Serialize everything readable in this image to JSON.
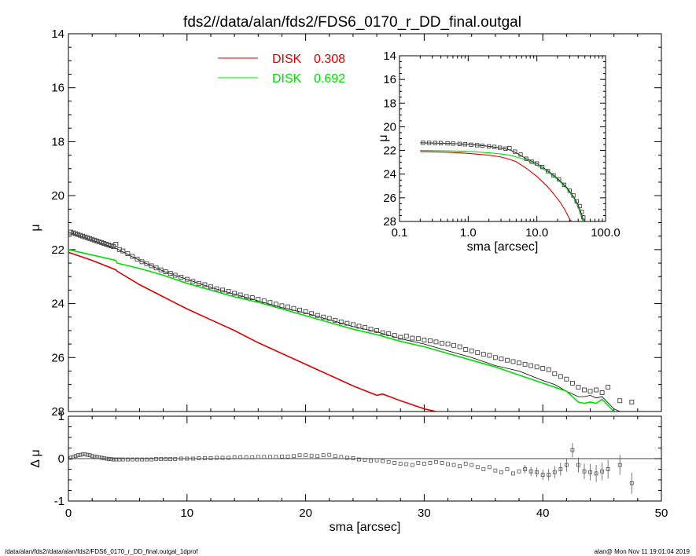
{
  "page": {
    "title": "fds2//data/alan/fds2/FDS6_0170_r_DD_final.outgal",
    "footer_left": "/data/alan/fds2//data/alan/fds2/FDS6_0170_r_DD_final.outgal_1dprof",
    "footer_right": "alan@  Mon Nov 11 19:01:04 2019"
  },
  "colors": {
    "disk1": "#dd0000",
    "disk2": "#00dd00",
    "model": "#000000",
    "data": "#555555"
  },
  "chart_data": [
    {
      "id": "main",
      "type": "scatter",
      "xlabel": "sma [arcsec]",
      "ylabel": "μ",
      "xlim": [
        0,
        50
      ],
      "ylim": [
        28,
        14
      ],
      "y_inverted": true,
      "xticks": [
        "0",
        "10",
        "20",
        "30",
        "40",
        "50"
      ],
      "yticks": [
        "14",
        "16",
        "18",
        "20",
        "22",
        "24",
        "26",
        "28"
      ],
      "legend": [
        {
          "label": "DISK",
          "value": "0.308",
          "color": "#dd0000"
        },
        {
          "label": "DISK",
          "value": "0.692",
          "color": "#00dd00"
        }
      ],
      "data_points": {
        "x": [
          0.2,
          0.4,
          0.6,
          0.8,
          1.0,
          1.2,
          1.4,
          1.6,
          1.8,
          2.0,
          2.2,
          2.4,
          2.6,
          2.8,
          3.0,
          3.2,
          3.4,
          3.6,
          3.8,
          4.0,
          4.3,
          4.6,
          5.0,
          5.4,
          5.8,
          6.2,
          6.6,
          7.0,
          7.4,
          7.8,
          8.2,
          8.6,
          9.0,
          9.5,
          10.0,
          10.5,
          11.0,
          11.5,
          12.0,
          12.5,
          13.0,
          13.5,
          14.0,
          14.5,
          15.0,
          15.5,
          16.0,
          16.5,
          17.0,
          17.5,
          18.0,
          18.5,
          19.0,
          19.5,
          20.0,
          20.5,
          21.0,
          21.5,
          22.0,
          22.5,
          23.0,
          23.5,
          24.0,
          24.5,
          25.0,
          25.5,
          26.0,
          26.5,
          27.0,
          27.5,
          28.0,
          28.5,
          29.0,
          29.5,
          30.0,
          30.5,
          31.0,
          31.5,
          32.0,
          32.5,
          33.0,
          33.5,
          34.0,
          34.5,
          35.0,
          35.5,
          36.0,
          36.5,
          37.0,
          37.5,
          38.0,
          38.5,
          39.0,
          39.5,
          40.0,
          40.5,
          41.0,
          41.5,
          42.0,
          42.5,
          43.0,
          43.5,
          44.0,
          44.5,
          45.0,
          45.5,
          46.5,
          47.5
        ],
        "y": [
          21.35,
          21.38,
          21.41,
          21.44,
          21.47,
          21.5,
          21.53,
          21.56,
          21.59,
          21.62,
          21.65,
          21.68,
          21.71,
          21.74,
          21.77,
          21.8,
          21.83,
          21.86,
          21.89,
          21.8,
          22.0,
          22.05,
          22.15,
          22.25,
          22.35,
          22.45,
          22.52,
          22.6,
          22.68,
          22.75,
          22.82,
          22.88,
          22.95,
          23.02,
          23.1,
          23.18,
          23.25,
          23.3,
          23.38,
          23.45,
          23.5,
          23.55,
          23.62,
          23.68,
          23.74,
          23.78,
          23.84,
          23.9,
          23.96,
          24.02,
          24.08,
          24.12,
          24.18,
          24.24,
          24.3,
          24.37,
          24.44,
          24.5,
          24.55,
          24.62,
          24.68,
          24.73,
          24.78,
          24.84,
          24.88,
          24.95,
          25.0,
          25.08,
          25.12,
          25.18,
          25.25,
          25.2,
          25.28,
          25.3,
          25.35,
          25.38,
          25.42,
          25.47,
          25.5,
          25.55,
          25.6,
          25.7,
          25.75,
          25.82,
          25.88,
          25.92,
          26.0,
          26.05,
          26.1,
          26.15,
          26.2,
          26.25,
          26.3,
          26.35,
          26.4,
          26.45,
          26.6,
          26.7,
          26.8,
          26.95,
          27.1,
          27.2,
          27.25,
          27.2,
          27.3,
          27.1,
          27.6,
          27.65
        ],
        "marker": "square"
      },
      "series": [
        {
          "color": "#000000",
          "x": [
            0,
            2,
            4,
            6,
            8,
            10,
            12,
            14,
            16,
            18,
            20,
            22,
            24,
            26,
            28,
            30,
            32,
            34,
            36,
            38,
            40,
            41,
            42,
            43,
            43.5,
            44,
            44.5,
            45,
            46,
            46.5
          ],
          "y": [
            21.35,
            21.65,
            21.95,
            22.4,
            22.8,
            23.1,
            23.4,
            23.65,
            23.9,
            24.15,
            24.35,
            24.6,
            24.85,
            25.05,
            25.3,
            25.5,
            25.75,
            26.0,
            26.3,
            26.5,
            26.85,
            27.0,
            27.25,
            27.45,
            27.45,
            27.4,
            27.5,
            27.45,
            27.9,
            28.0
          ]
        },
        {
          "color": "#dd0000",
          "x": [
            0,
            2,
            4,
            4.1,
            6,
            8,
            10,
            12,
            14,
            16,
            18,
            20,
            22,
            24,
            26,
            26.5,
            28,
            30,
            31
          ],
          "y": [
            22.1,
            22.4,
            22.75,
            22.8,
            23.3,
            23.75,
            24.2,
            24.6,
            25.0,
            25.45,
            25.85,
            26.25,
            26.65,
            27.05,
            27.4,
            27.35,
            27.6,
            27.9,
            28.0
          ]
        },
        {
          "color": "#00dd00",
          "x": [
            0,
            2,
            4,
            4.1,
            6,
            8,
            10,
            12,
            14,
            16,
            18,
            20,
            22,
            24,
            26,
            28,
            30,
            32,
            34,
            36,
            38,
            40,
            42,
            43,
            43.5,
            44,
            44.5,
            45,
            46
          ],
          "y": [
            22.0,
            22.2,
            22.4,
            22.5,
            22.7,
            22.95,
            23.25,
            23.5,
            23.75,
            23.95,
            24.2,
            24.45,
            24.7,
            24.95,
            25.15,
            25.4,
            25.6,
            25.85,
            26.1,
            26.35,
            26.65,
            26.95,
            27.25,
            27.65,
            27.7,
            27.65,
            27.7,
            27.55,
            28.0
          ]
        }
      ]
    },
    {
      "id": "residual",
      "type": "scatter",
      "xlabel": "",
      "ylabel": "Δ μ",
      "xlim": [
        0,
        50
      ],
      "ylim": [
        -1,
        1
      ],
      "yticks": [
        "1",
        "0",
        "-1"
      ],
      "zero_line": true,
      "x": [
        0.2,
        0.4,
        0.6,
        0.8,
        1.0,
        1.2,
        1.4,
        1.6,
        1.8,
        2.0,
        2.2,
        2.4,
        2.6,
        2.8,
        3.0,
        3.2,
        3.4,
        3.6,
        3.8,
        4.0,
        4.3,
        4.6,
        5.0,
        5.4,
        5.8,
        6.2,
        6.6,
        7.0,
        7.4,
        7.8,
        8.2,
        8.6,
        9.0,
        9.5,
        10.0,
        10.5,
        11.0,
        11.5,
        12.0,
        12.5,
        13.0,
        13.5,
        14.0,
        14.5,
        15.0,
        15.5,
        16.0,
        16.5,
        17.0,
        17.5,
        18.0,
        18.5,
        19.0,
        19.5,
        20.0,
        20.5,
        21.0,
        21.5,
        22.0,
        22.5,
        23.0,
        23.5,
        24.0,
        24.5,
        25.0,
        25.5,
        26.0,
        26.5,
        27.0,
        27.5,
        28.0,
        28.5,
        29.0,
        29.5,
        30.0,
        30.5,
        31.0,
        31.5,
        32.0,
        32.5,
        33.0,
        33.5,
        34.0,
        34.5,
        35.0,
        35.5,
        36.0,
        36.5,
        37.0,
        37.5,
        38.0,
        38.5,
        39.0,
        39.5,
        40.0,
        40.5,
        41.0,
        41.5,
        42.0,
        42.5,
        43.0,
        43.5,
        44.0,
        44.5,
        45.0,
        45.5,
        46.5,
        47.5
      ],
      "y": [
        0.02,
        0.04,
        0.06,
        0.08,
        0.09,
        0.1,
        0.1,
        0.09,
        0.08,
        0.06,
        0.05,
        0.04,
        0.03,
        0.02,
        0.01,
        0.0,
        -0.01,
        -0.01,
        -0.02,
        -0.02,
        -0.02,
        -0.02,
        -0.02,
        -0.02,
        -0.02,
        -0.02,
        -0.02,
        -0.02,
        -0.01,
        -0.01,
        -0.01,
        -0.01,
        -0.01,
        0.0,
        0.0,
        0.0,
        0.01,
        0.01,
        0.01,
        0.02,
        0.02,
        0.02,
        0.03,
        0.03,
        0.03,
        0.03,
        0.04,
        0.04,
        0.04,
        0.04,
        0.05,
        0.05,
        0.06,
        0.08,
        0.08,
        0.07,
        0.06,
        0.08,
        0.09,
        0.06,
        0.04,
        0.02,
        0.01,
        -0.02,
        -0.03,
        -0.05,
        -0.04,
        -0.06,
        -0.08,
        -0.1,
        -0.12,
        -0.13,
        -0.15,
        -0.1,
        -0.12,
        -0.1,
        -0.08,
        -0.1,
        -0.13,
        -0.15,
        -0.18,
        -0.12,
        -0.15,
        -0.2,
        -0.25,
        -0.2,
        -0.28,
        -0.32,
        -0.25,
        -0.35,
        -0.3,
        -0.25,
        -0.3,
        -0.32,
        -0.38,
        -0.38,
        -0.32,
        -0.25,
        -0.15,
        0.2,
        -0.15,
        -0.3,
        -0.32,
        -0.35,
        -0.3,
        -0.25,
        -0.15,
        -0.58
      ],
      "error_bars": true
    },
    {
      "id": "inset",
      "type": "scatter",
      "xlabel": "sma [arcsec]",
      "ylabel": "μ",
      "x_scale": "log",
      "xlim": [
        0.1,
        100
      ],
      "ylim": [
        28,
        14
      ],
      "y_inverted": true,
      "xticks": [
        "0.1",
        "1.0",
        "10.0",
        "100.0"
      ],
      "yticks": [
        "14",
        "16",
        "18",
        "20",
        "22",
        "24",
        "26",
        "28"
      ],
      "data_points": {
        "x": [
          0.22,
          0.27,
          0.33,
          0.4,
          0.5,
          0.6,
          0.75,
          0.9,
          1.1,
          1.35,
          1.6,
          2.0,
          2.4,
          2.9,
          3.5,
          4.0,
          4.8,
          5.8,
          7.0,
          8.4,
          10.0,
          12.0,
          14.5,
          17.5,
          21.0,
          25.0,
          30.0,
          34.0,
          38.0,
          42.0,
          45.0,
          47.5
        ],
        "y": [
          21.35,
          21.36,
          21.37,
          21.38,
          21.4,
          21.42,
          21.45,
          21.48,
          21.52,
          21.56,
          21.6,
          21.65,
          21.7,
          21.77,
          21.85,
          21.8,
          22.1,
          22.35,
          22.7,
          22.95,
          23.1,
          23.4,
          23.75,
          24.1,
          24.45,
          24.9,
          25.4,
          25.8,
          26.3,
          26.7,
          27.2,
          27.65
        ]
      },
      "series": [
        {
          "color": "#000000",
          "x": [
            0.2,
            0.5,
            1.0,
            2.0,
            3.0,
            4.0,
            5.0,
            7.0,
            10.0,
            14.0,
            20.0,
            28.0,
            35.0,
            40.0,
            45.0,
            48.0
          ],
          "y": [
            21.35,
            21.4,
            21.48,
            21.65,
            21.8,
            21.95,
            22.2,
            22.7,
            23.1,
            23.65,
            24.35,
            25.2,
            26.0,
            26.6,
            27.4,
            28.0
          ]
        },
        {
          "color": "#dd0000",
          "x": [
            0.2,
            0.5,
            1.0,
            2.0,
            3.0,
            4.0,
            5.0,
            7.0,
            10.0,
            14.0,
            18.0,
            22.0,
            26.0,
            30.0,
            32.0
          ],
          "y": [
            22.1,
            22.15,
            22.25,
            22.4,
            22.55,
            22.75,
            22.95,
            23.5,
            24.2,
            25.0,
            25.75,
            26.4,
            27.1,
            27.8,
            28.0
          ]
        },
        {
          "color": "#00dd00",
          "x": [
            0.2,
            0.5,
            1.0,
            2.0,
            3.0,
            4.0,
            5.0,
            7.0,
            10.0,
            14.0,
            20.0,
            28.0,
            35.0,
            40.0,
            45.0,
            47.0
          ],
          "y": [
            22.0,
            22.03,
            22.08,
            22.2,
            22.3,
            22.4,
            22.55,
            22.8,
            23.25,
            23.75,
            24.45,
            25.3,
            26.1,
            26.8,
            27.7,
            28.0
          ]
        }
      ]
    }
  ]
}
